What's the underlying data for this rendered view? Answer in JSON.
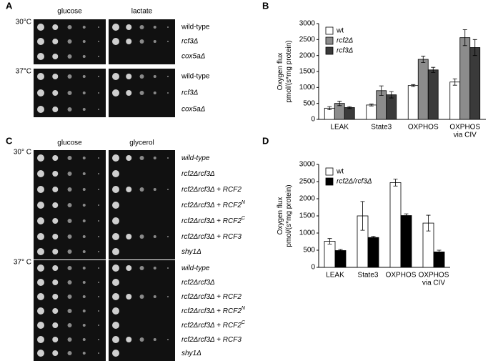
{
  "panels": {
    "a": {
      "letter": "A",
      "media": [
        "glucose",
        "lactate"
      ],
      "temps": [
        {
          "label": "30°C",
          "strains": [
            "wild-type",
            "rcf3Δ",
            "cox5aΔ"
          ]
        },
        {
          "label": "37°C",
          "strains": [
            "wild-type",
            "rcf3Δ",
            "cox5aΔ"
          ]
        }
      ]
    },
    "c": {
      "letter": "C",
      "media": [
        "glucose",
        "glycerol"
      ],
      "temps": [
        {
          "label": "30° C",
          "strains": [
            {
              "text": "wild-type"
            },
            {
              "text": "rcf2Δrcf3Δ"
            },
            {
              "text": "rcf2Δrcf3Δ + RCF2"
            },
            {
              "text": "rcf2Δrcf3Δ + RCF2",
              "sup": "N"
            },
            {
              "text": "rcf2Δrcf3Δ + RCF2",
              "sup": "C"
            },
            {
              "text": "rcf2Δrcf3Δ + RCF3"
            },
            {
              "text": "shy1Δ"
            }
          ]
        },
        {
          "label": "37° C",
          "strains": [
            {
              "text": "wild-type"
            },
            {
              "text": "rcf2Δrcf3Δ"
            },
            {
              "text": "rcf2Δrcf3Δ + RCF2"
            },
            {
              "text": "rcf2Δrcf3Δ + RCF2",
              "sup": "N"
            },
            {
              "text": "rcf2Δrcf3Δ + RCF2",
              "sup": "C"
            },
            {
              "text": "rcf2Δrcf3Δ + RCF3"
            },
            {
              "text": "shy1Δ"
            }
          ]
        }
      ]
    }
  },
  "chart_data": [
    {
      "type": "bar",
      "letter": "B",
      "ylabel": [
        "Oxygen flux",
        "pmol/(s*mg protein)"
      ],
      "categories": [
        "LEAK",
        "State3",
        "OXPHOS",
        [
          "OXPHOS",
          "via CIV"
        ]
      ],
      "series": [
        {
          "name": "wt",
          "color": "#ffffff",
          "values": [
            350,
            450,
            1060,
            1170
          ],
          "errors": [
            50,
            30,
            30,
            100
          ]
        },
        {
          "name": "rcf2Δ",
          "color": "#8c8c8c",
          "values": [
            500,
            900,
            1880,
            2560
          ],
          "errors": [
            70,
            150,
            100,
            250
          ]
        },
        {
          "name": "rcf3Δ",
          "color": "#3a3a3a",
          "values": [
            370,
            770,
            1550,
            2250
          ],
          "errors": [
            30,
            100,
            80,
            250
          ]
        }
      ],
      "ylim": [
        0,
        3000
      ],
      "yticks": [
        0,
        500,
        1000,
        1500,
        2000,
        2500,
        3000
      ]
    },
    {
      "type": "bar",
      "letter": "D",
      "ylabel": [
        "Oxygen flux",
        "pmol/(s*mg protein)"
      ],
      "categories": [
        "LEAK",
        "State3",
        "OXPHOS",
        [
          "OXPHOS",
          "via CIV"
        ]
      ],
      "series": [
        {
          "name": "wt",
          "color": "#ffffff",
          "values": [
            760,
            1500,
            2470,
            1290
          ],
          "errors": [
            80,
            420,
            100,
            230
          ]
        },
        {
          "name": "rcf2Δ/rcf3Δ",
          "color": "#000000",
          "values": [
            490,
            870,
            1510,
            450
          ],
          "errors": [
            30,
            30,
            50,
            50
          ]
        }
      ],
      "ylim": [
        0,
        3000
      ],
      "yticks": [
        0,
        500,
        1000,
        1500,
        2000,
        2500,
        3000
      ]
    }
  ]
}
